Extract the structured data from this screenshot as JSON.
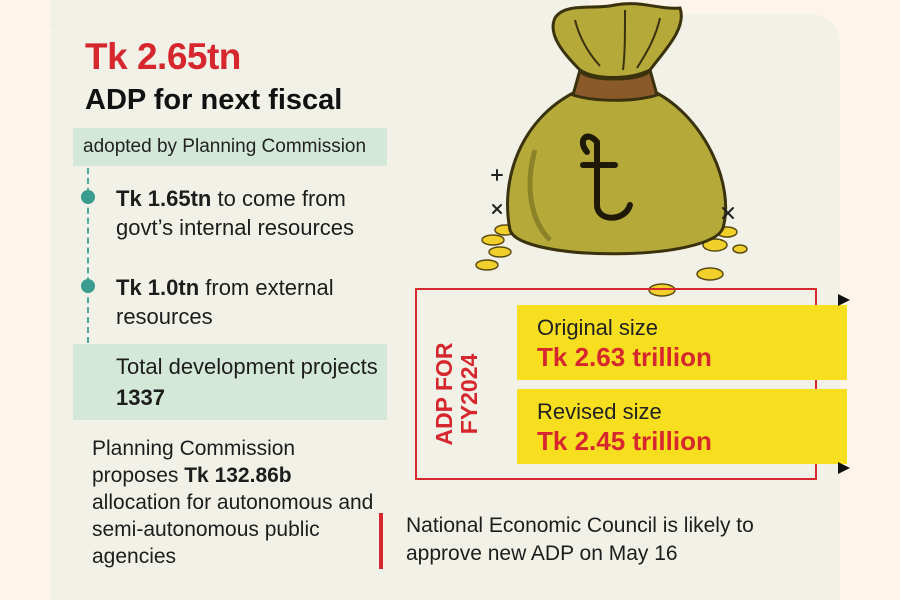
{
  "headline": {
    "amount": "Tk 2.65tn",
    "subtitle": "ADP for next fiscal"
  },
  "adopted_by": "adopted by Planning Commission",
  "sources": [
    {
      "amount": "Tk 1.65tn",
      "text": " to come from govt’s internal resources"
    },
    {
      "amount": "Tk 1.0tn",
      "text": " from external resources"
    }
  ],
  "total_projects": {
    "text": "Total development projects ",
    "value": "1337"
  },
  "proposal": {
    "before": "Planning Commission proposes ",
    "amount": "Tk 132.86b",
    "after": " allocation for autonomous and semi-autonomous public agencies"
  },
  "adp_fy2024": {
    "label_line1": "ADP FOR",
    "label_line2": "FY2024",
    "original_label": "Original size",
    "original_value": "Tk 2.63 trillion",
    "revised_label": "Revised size",
    "revised_value": "Tk 2.45 trillion"
  },
  "council_note": "National Economic Council is likely to approve new ADP on May 16",
  "colors": {
    "accent_red": "#d6272e",
    "mint": "#d3e8d9",
    "yellow": "#f7df1f",
    "teal": "#3a9c8e"
  },
  "icons": [
    "money-bag-icon",
    "taka-symbol-icon",
    "coin-icon",
    "sparkle-icon"
  ]
}
